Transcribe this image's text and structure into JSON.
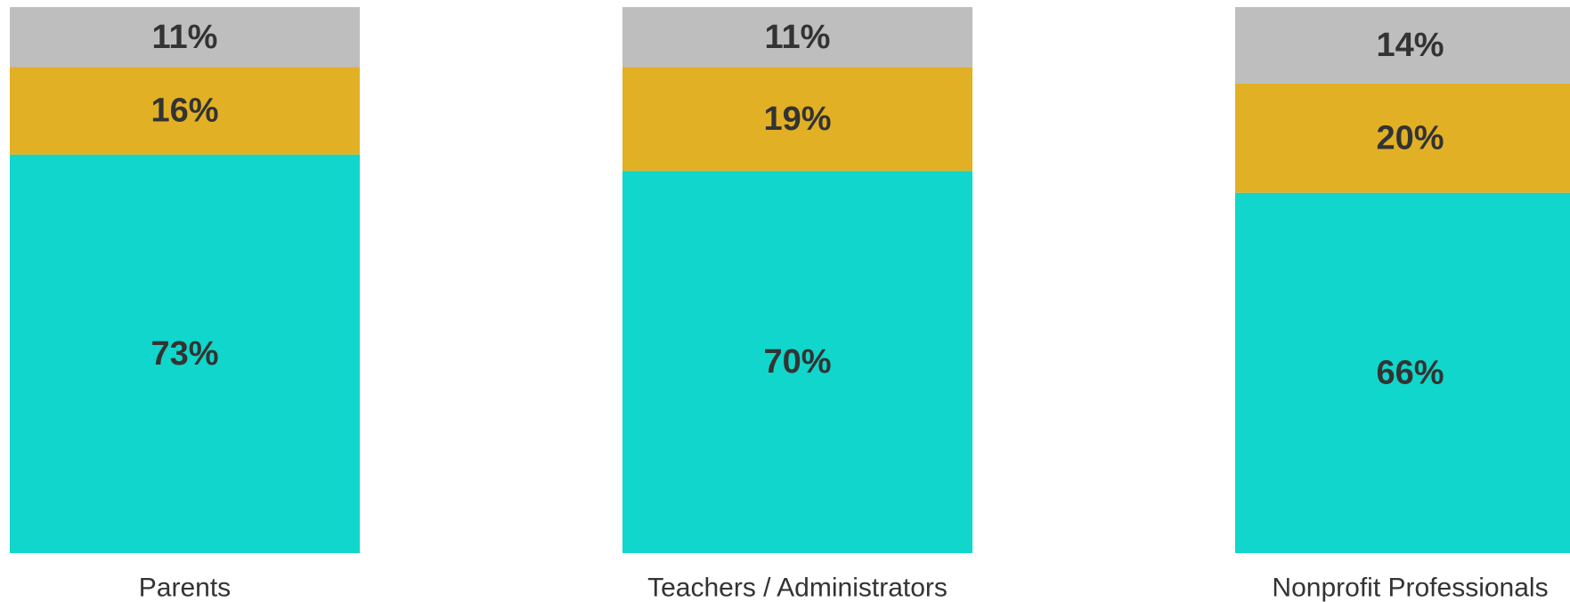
{
  "chart_data": {
    "type": "bar",
    "stacked": true,
    "orientation": "vertical",
    "categories": [
      "Parents",
      "Teachers / Administrators",
      "Nonprofit Professionals"
    ],
    "series": [
      {
        "values": [
          73,
          70,
          66
        ],
        "labels": [
          "73%",
          "70%",
          "66%"
        ],
        "color": "#10d6cb"
      },
      {
        "values": [
          16,
          19,
          20
        ],
        "labels": [
          "16%",
          "19%",
          "20%"
        ],
        "color": "#e2b024"
      },
      {
        "values": [
          11,
          11,
          14
        ],
        "labels": [
          "11%",
          "11%",
          "14%"
        ],
        "color": "#bebebe"
      }
    ],
    "ylim": [
      0,
      100
    ],
    "grid": false,
    "legend": "none",
    "axes_visible": false
  }
}
